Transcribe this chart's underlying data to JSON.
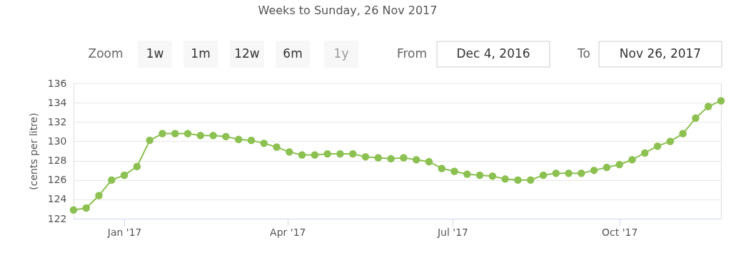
{
  "chart_data": {
    "type": "line",
    "title": "Weeks to Sunday, 26 Nov 2017",
    "ylabel": "(cents per litre)",
    "annotations": [
      "Zoom",
      "1w",
      "1m",
      "12w",
      "6m",
      "1y",
      "From",
      "Dec 4, 2016",
      "To",
      "Nov 26, 2017"
    ],
    "x": [
      "2016-12-04",
      "2016-12-11",
      "2016-12-18",
      "2016-12-25",
      "2017-01-01",
      "2017-01-08",
      "2017-01-15",
      "2017-01-22",
      "2017-01-29",
      "2017-02-05",
      "2017-02-12",
      "2017-02-19",
      "2017-02-26",
      "2017-03-05",
      "2017-03-12",
      "2017-03-19",
      "2017-03-26",
      "2017-04-02",
      "2017-04-09",
      "2017-04-16",
      "2017-04-23",
      "2017-04-30",
      "2017-05-07",
      "2017-05-14",
      "2017-05-21",
      "2017-05-28",
      "2017-06-04",
      "2017-06-11",
      "2017-06-18",
      "2017-06-25",
      "2017-07-02",
      "2017-07-09",
      "2017-07-16",
      "2017-07-23",
      "2017-07-30",
      "2017-08-06",
      "2017-08-13",
      "2017-08-20",
      "2017-08-27",
      "2017-09-03",
      "2017-09-10",
      "2017-09-17",
      "2017-09-24",
      "2017-10-01",
      "2017-10-08",
      "2017-10-15",
      "2017-10-22",
      "2017-10-29",
      "2017-11-05",
      "2017-11-12",
      "2017-11-19",
      "2017-11-26"
    ],
    "series": [
      {
        "color": "#8cc152",
        "values": [
          122.9,
          123.1,
          124.4,
          126.0,
          126.5,
          127.4,
          130.1,
          130.8,
          130.8,
          130.8,
          130.6,
          130.6,
          130.5,
          130.2,
          130.1,
          129.8,
          129.4,
          128.9,
          128.6,
          128.6,
          128.7,
          128.7,
          128.7,
          128.4,
          128.3,
          128.2,
          128.3,
          128.1,
          127.9,
          127.2,
          126.9,
          126.6,
          126.5,
          126.4,
          126.1,
          126.0,
          126.0,
          126.5,
          126.7,
          126.7,
          126.7,
          127.0,
          127.3,
          127.6,
          128.1,
          128.8,
          129.5,
          130.0,
          130.8,
          132.4,
          133.6,
          134.2
        ]
      }
    ],
    "xlim": [
      "2016-12-04",
      "2017-11-26"
    ],
    "xticks": [
      {
        "value": "2017-01-01",
        "label": "Jan '17"
      },
      {
        "value": "2017-04-01",
        "label": "Apr '17"
      },
      {
        "value": "2017-07-01",
        "label": "Jul '17"
      },
      {
        "value": "2017-10-01",
        "label": "Oct '17"
      }
    ],
    "ylim": [
      122,
      136
    ],
    "yticks": [
      122,
      124,
      126,
      128,
      130,
      132,
      134,
      136
    ],
    "grid": "y",
    "marker": "circle",
    "line_style": "solid"
  }
}
